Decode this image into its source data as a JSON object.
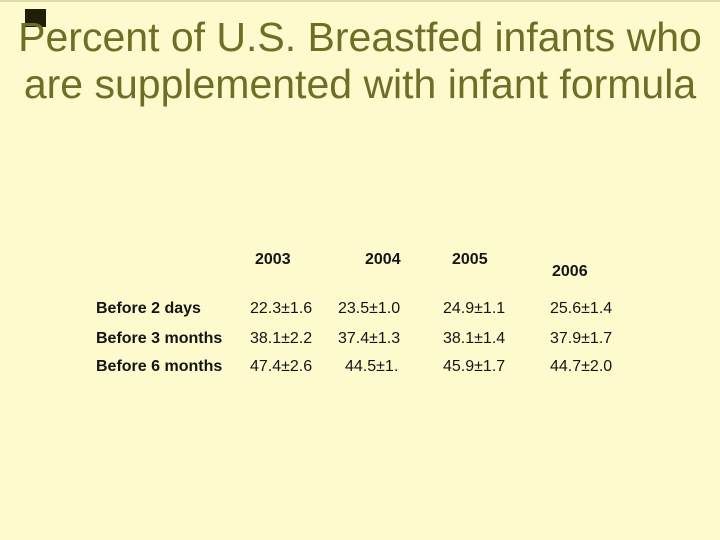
{
  "slide": {
    "background_color": "#FDFACD",
    "title_color": "#6F6D26",
    "text_color": "#141414",
    "corner_marker_color": "#1F1F07",
    "title_full": "Percent of U.S. Breastfed infants who are supplemented with infant formula",
    "title_line1": "Percent of U.S. Breastfed infants who",
    "title_line2": "are supplemented with infant formula"
  },
  "table": {
    "columns": [
      "2003",
      "2004",
      "2005",
      "2006"
    ],
    "rows": [
      {
        "label": "Before 2 days",
        "values": [
          "22.3±1.6",
          "23.5±1.0",
          "24.9±1.1",
          "25.6±1.4"
        ]
      },
      {
        "label": "Before 3 months",
        "values": [
          "38.1±2.2",
          "37.4±1.3",
          "38.1±1.4",
          "37.9±1.7"
        ]
      },
      {
        "label": "Before 6 months",
        "values": [
          "47.4±2.6",
          "44.5±1.",
          "45.9±1.7",
          "44.7±2.0"
        ]
      }
    ]
  },
  "chart_data": {
    "type": "table",
    "title": "Percent of U.S. Breastfed infants who are supplemented with infant formula",
    "columns": [
      "2003",
      "2004",
      "2005",
      "2006"
    ],
    "rows": [
      {
        "label": "Before 2 days",
        "values": [
          "22.3±1.6",
          "23.5±1.0",
          "24.9±1.1",
          "25.6±1.4"
        ]
      },
      {
        "label": "Before 3 months",
        "values": [
          "38.1±2.2",
          "37.4±1.3",
          "38.1±1.4",
          "37.9±1.7"
        ]
      },
      {
        "label": "Before 6 months",
        "values": [
          "47.4±2.6",
          "44.5±1.",
          "45.9±1.7",
          "44.7±2.0"
        ]
      }
    ]
  }
}
